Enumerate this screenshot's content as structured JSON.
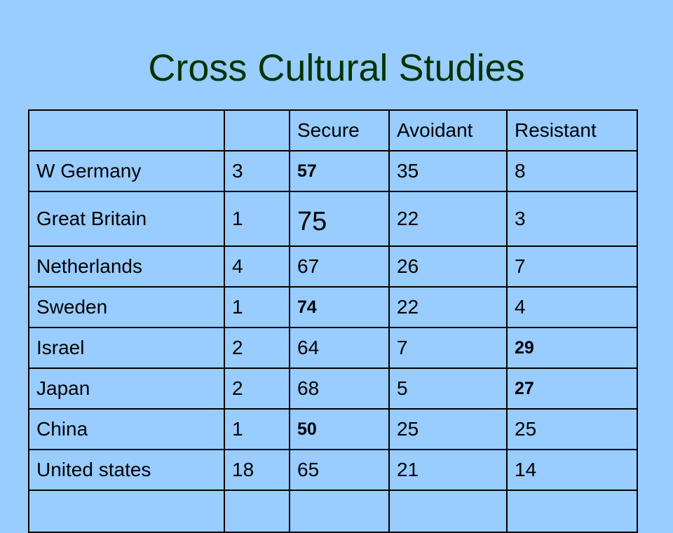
{
  "slide": {
    "title": "Cross Cultural Studies"
  },
  "table": {
    "headers": [
      "",
      "",
      "Secure",
      "Avoidant",
      "Resistant"
    ],
    "rows": [
      [
        "W Germany",
        "3",
        "57",
        "35",
        "8"
      ],
      [
        "Great Britain",
        "1",
        "75",
        "22",
        "3"
      ],
      [
        "Netherlands",
        "4",
        "67",
        "26",
        "7"
      ],
      [
        "Sweden",
        "1",
        "74",
        "22",
        "4"
      ],
      [
        "Israel",
        "2",
        "64",
        "7",
        "29"
      ],
      [
        "Japan",
        "2",
        "68",
        "5",
        "27"
      ],
      [
        "China",
        "1",
        "50",
        "25",
        "25"
      ],
      [
        "United states",
        "18",
        "65",
        "21",
        "14"
      ],
      [
        "",
        "",
        "",
        "",
        ""
      ]
    ],
    "bold_cells": [
      [
        0,
        2
      ],
      [
        3,
        2
      ],
      [
        4,
        4
      ],
      [
        5,
        4
      ],
      [
        6,
        2
      ]
    ],
    "large_cells": [
      [
        1,
        2
      ]
    ]
  },
  "colors": {
    "background": "#99ccff",
    "title": "#003300",
    "text": "#000000",
    "border": "#000000"
  }
}
